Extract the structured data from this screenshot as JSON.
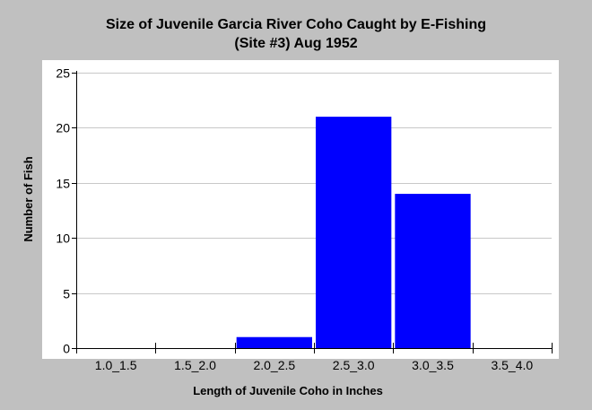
{
  "chart_data": {
    "type": "bar",
    "title_line1": "Size of Juvenile Garcia River Coho Caught by E-Fishing",
    "title_line2": "(Site #3) Aug 1952",
    "xlabel": "Length of Juvenile Coho in Inches",
    "ylabel": "Number of Fish",
    "categories": [
      "1.0_1.5",
      "1.5_2.0",
      "2.0_2.5",
      "2.5_3.0",
      "3.0_3.5",
      "3.5_4.0"
    ],
    "values": [
      0,
      0,
      1,
      21,
      14,
      0
    ],
    "ylim": [
      0,
      25
    ],
    "yticks": [
      "0",
      "5",
      "10",
      "15",
      "20",
      "25"
    ],
    "grid": true,
    "bar_color": "#0000ff",
    "plot_background": "#ffffff",
    "background": "#c0c0c0"
  }
}
